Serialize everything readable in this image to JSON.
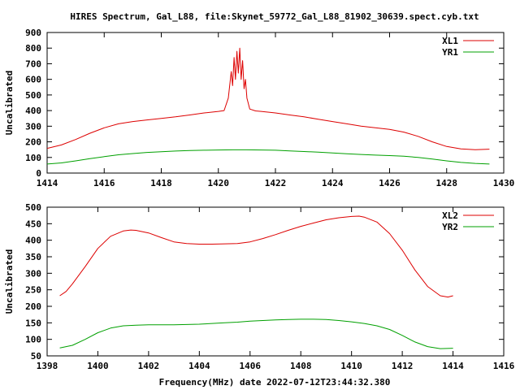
{
  "title": "HIRES Spectrum, Gal_L88, file:Skynet_59772_Gal_L88_81902_30639.spect.cyb.txt",
  "xlabel": "Frequency(MHz) date 2022-07-12T23:44:32.380",
  "colors": {
    "red": "#dd0000",
    "green": "#00a000",
    "frame": "#000000"
  },
  "chart_data": [
    {
      "type": "line",
      "ylabel": "Uncalibrated",
      "xlim": [
        1414,
        1430
      ],
      "ylim": [
        0,
        900
      ],
      "xticks": [
        1414,
        1416,
        1418,
        1420,
        1422,
        1424,
        1426,
        1428,
        1430
      ],
      "yticks": [
        0,
        100,
        200,
        300,
        400,
        500,
        600,
        700,
        800,
        900
      ],
      "legend_position": "top-right",
      "series": [
        {
          "name": "XL1",
          "color": "#dd0000",
          "x": [
            1414.0,
            1414.5,
            1415.0,
            1415.5,
            1416.0,
            1416.5,
            1417.0,
            1417.5,
            1418.0,
            1418.5,
            1419.0,
            1419.5,
            1420.0,
            1420.2,
            1420.35,
            1420.45,
            1420.5,
            1420.55,
            1420.6,
            1420.65,
            1420.7,
            1420.75,
            1420.8,
            1420.85,
            1420.9,
            1420.95,
            1421.0,
            1421.1,
            1421.3,
            1421.5,
            1422.0,
            1422.5,
            1423.0,
            1423.5,
            1424.0,
            1424.5,
            1425.0,
            1425.5,
            1426.0,
            1426.5,
            1427.0,
            1427.5,
            1428.0,
            1428.5,
            1429.0,
            1429.5
          ],
          "y": [
            158,
            180,
            215,
            255,
            290,
            315,
            330,
            340,
            350,
            360,
            372,
            385,
            395,
            400,
            480,
            650,
            560,
            740,
            600,
            780,
            640,
            800,
            600,
            720,
            540,
            600,
            480,
            410,
            398,
            395,
            385,
            372,
            360,
            345,
            330,
            315,
            300,
            290,
            280,
            262,
            235,
            200,
            170,
            155,
            150,
            153
          ]
        },
        {
          "name": "YR1",
          "color": "#00a000",
          "x": [
            1414.0,
            1414.5,
            1415.0,
            1415.5,
            1416.0,
            1416.5,
            1417.0,
            1417.5,
            1418.0,
            1418.5,
            1419.0,
            1419.5,
            1420.0,
            1420.5,
            1421.0,
            1421.5,
            1422.0,
            1422.5,
            1423.0,
            1423.5,
            1424.0,
            1424.5,
            1425.0,
            1425.5,
            1426.0,
            1426.5,
            1427.0,
            1427.5,
            1428.0,
            1428.5,
            1429.0,
            1429.5
          ],
          "y": [
            58,
            65,
            78,
            92,
            105,
            117,
            125,
            132,
            137,
            141,
            144,
            146,
            148,
            149,
            149,
            148,
            146,
            142,
            138,
            134,
            129,
            124,
            119,
            115,
            112,
            108,
            100,
            90,
            78,
            68,
            62,
            58
          ]
        }
      ]
    },
    {
      "type": "line",
      "ylabel": "Uncalibrated",
      "xlim": [
        1398,
        1416
      ],
      "ylim": [
        50,
        500
      ],
      "xticks": [
        1398,
        1400,
        1402,
        1404,
        1406,
        1408,
        1410,
        1412,
        1414,
        1416
      ],
      "yticks": [
        50,
        100,
        150,
        200,
        250,
        300,
        350,
        400,
        450,
        500
      ],
      "legend_position": "top-right",
      "series": [
        {
          "name": "XL2",
          "color": "#dd0000",
          "x": [
            1398.5,
            1398.75,
            1399.0,
            1399.5,
            1400.0,
            1400.5,
            1401.0,
            1401.3,
            1401.5,
            1402.0,
            1402.5,
            1403.0,
            1403.5,
            1404.0,
            1404.5,
            1405.0,
            1405.5,
            1406.0,
            1406.5,
            1407.0,
            1407.5,
            1408.0,
            1408.5,
            1409.0,
            1409.5,
            1410.0,
            1410.3,
            1410.5,
            1411.0,
            1411.5,
            1412.0,
            1412.5,
            1413.0,
            1413.5,
            1413.8,
            1414.0
          ],
          "y": [
            232,
            245,
            268,
            320,
            375,
            412,
            428,
            431,
            430,
            422,
            408,
            395,
            390,
            388,
            388,
            389,
            390,
            395,
            405,
            417,
            430,
            442,
            452,
            462,
            468,
            472,
            473,
            470,
            455,
            420,
            370,
            310,
            260,
            232,
            228,
            232
          ]
        },
        {
          "name": "YR2",
          "color": "#00a000",
          "x": [
            1398.5,
            1399.0,
            1399.5,
            1400.0,
            1400.5,
            1401.0,
            1401.5,
            1402.0,
            1402.5,
            1403.0,
            1403.5,
            1404.0,
            1404.5,
            1405.0,
            1405.5,
            1406.0,
            1406.5,
            1407.0,
            1407.5,
            1408.0,
            1408.5,
            1409.0,
            1409.5,
            1410.0,
            1410.5,
            1411.0,
            1411.5,
            1412.0,
            1412.5,
            1413.0,
            1413.5,
            1414.0
          ],
          "y": [
            74,
            82,
            100,
            120,
            134,
            141,
            143,
            144,
            144,
            144,
            145,
            146,
            148,
            150,
            152,
            155,
            157,
            159,
            160,
            161,
            161,
            160,
            157,
            153,
            148,
            141,
            130,
            112,
            92,
            78,
            72,
            73
          ]
        }
      ]
    }
  ]
}
